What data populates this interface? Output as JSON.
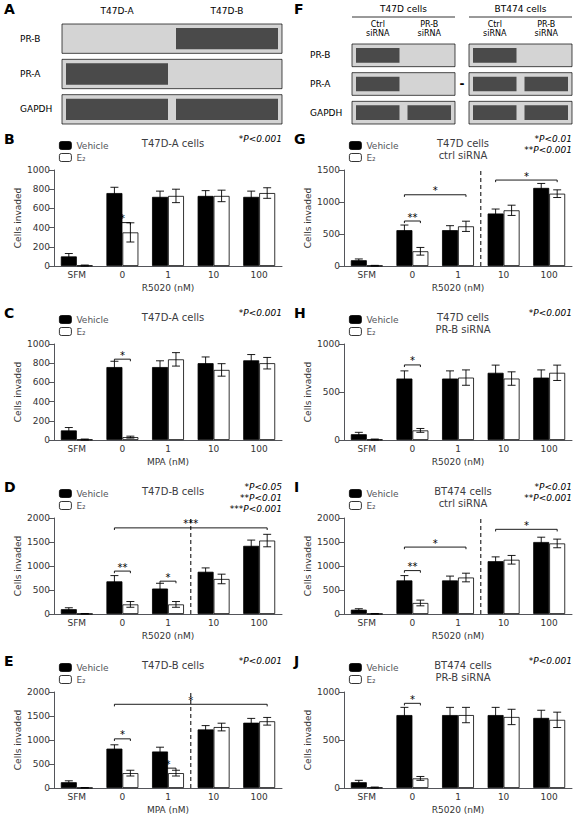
{
  "chart_data": [
    {
      "type": "blot",
      "panel_label": "A",
      "columns": [
        "T47D-A",
        "T47D-B"
      ],
      "rows": [
        "PR-B",
        "PR-A",
        "GAPDH"
      ],
      "bands": [
        [
          false,
          true
        ],
        [
          true,
          false
        ],
        [
          true,
          true
        ]
      ]
    },
    {
      "type": "blot",
      "panel_label": "F",
      "groups": [
        {
          "name": "T47D cells",
          "columns": [
            "Ctrl\nsiRNA",
            "PR-B\nsiRNA"
          ]
        },
        {
          "name": "BT474 cells",
          "columns": [
            "Ctrl\nsiRNA",
            "PR-B\nsiRNA"
          ]
        }
      ],
      "rows": [
        "PR-B",
        "PR-A",
        "GAPDH"
      ],
      "bands": [
        [
          true,
          false,
          true,
          false
        ],
        [
          true,
          false,
          true,
          true
        ],
        [
          true,
          true,
          true,
          true
        ]
      ],
      "annotations": [
        {
          "label": "-",
          "row": "PR-A",
          "group": "T47D cells"
        }
      ]
    },
    {
      "type": "bar",
      "panel_label": "B",
      "title": "T47D-A cells",
      "xlabel": "R5020 (nM)",
      "ylabel": "Cells invaded",
      "categories": [
        "SFM",
        "0",
        "1",
        "10",
        "100"
      ],
      "series": [
        {
          "name": "Vehicle",
          "color": "#000000",
          "edge_color": "#000000",
          "values": [
            100,
            760,
            720,
            730,
            720
          ],
          "errors": [
            30,
            60,
            60,
            55,
            60
          ]
        },
        {
          "name": "E₂",
          "color": "#ffffff",
          "edge_color": "#000000",
          "values": [
            5,
            350,
            730,
            730,
            760
          ],
          "errors": [
            5,
            100,
            70,
            60,
            55
          ]
        }
      ],
      "ylim": [
        0,
        1000
      ],
      "yticks": [
        0,
        200,
        400,
        600,
        800,
        1000
      ],
      "grid": false,
      "legend": "upper left",
      "annotations": [
        {
          "label": "*P<0.001",
          "position": "upper right"
        },
        {
          "label": "*",
          "from": "0",
          "to": "0",
          "y": 430
        }
      ]
    },
    {
      "type": "bar",
      "panel_label": "C",
      "title": "T47D-A cells",
      "xlabel": "MPA (nM)",
      "ylabel": "Cells invaded",
      "categories": [
        "SFM",
        "0",
        "1",
        "10",
        "100"
      ],
      "series": [
        {
          "name": "Vehicle",
          "color": "#000000",
          "edge_color": "#000000",
          "values": [
            100,
            760,
            760,
            800,
            830
          ],
          "errors": [
            30,
            60,
            65,
            65,
            60
          ]
        },
        {
          "name": "E₂",
          "color": "#ffffff",
          "edge_color": "#000000",
          "values": [
            5,
            30,
            840,
            730,
            800
          ],
          "errors": [
            5,
            10,
            70,
            65,
            60
          ]
        }
      ],
      "ylim": [
        0,
        1000
      ],
      "yticks": [
        0,
        200,
        400,
        600,
        800,
        1000
      ],
      "grid": false,
      "legend": "upper left",
      "annotations": [
        {
          "label": "*P<0.001",
          "position": "upper right"
        },
        {
          "label": "*",
          "from": "0",
          "to": "0",
          "y": 820
        }
      ]
    },
    {
      "type": "bar",
      "panel_label": "D",
      "title": "T47D-B cells",
      "xlabel": "R5020 (nM)",
      "ylabel": "Cells invaded",
      "categories": [
        "SFM",
        "0",
        "1",
        "10",
        "100"
      ],
      "series": [
        {
          "name": "Vehicle",
          "color": "#000000",
          "edge_color": "#000000",
          "values": [
            100,
            680,
            530,
            880,
            1420
          ],
          "errors": [
            30,
            120,
            110,
            80,
            120
          ]
        },
        {
          "name": "E₂",
          "color": "#ffffff",
          "edge_color": "#000000",
          "values": [
            5,
            200,
            200,
            730,
            1530
          ],
          "errors": [
            5,
            60,
            60,
            100,
            130
          ]
        }
      ],
      "ylim": [
        0,
        2000
      ],
      "yticks": [
        0,
        500,
        1000,
        1500,
        2000
      ],
      "grid": false,
      "legend": "upper left",
      "annotations": [
        {
          "label": "*P<0.05\n**P<0.01\n***P<0.001",
          "position": "upper right"
        },
        {
          "line_style": "dashed",
          "after": "1"
        },
        {
          "label": "**",
          "from": "0",
          "to": "0",
          "y": 850
        },
        {
          "label": "*",
          "from": "1",
          "to": "1",
          "y": 640
        },
        {
          "label": "***",
          "from": "0",
          "to": "100",
          "y": 1750
        }
      ]
    },
    {
      "type": "bar",
      "panel_label": "E",
      "title": "T47D-B cells",
      "xlabel": "MPA (nM)",
      "ylabel": "Cells invaded",
      "categories": [
        "SFM",
        "0",
        "1",
        "10",
        "100"
      ],
      "series": [
        {
          "name": "Vehicle",
          "color": "#000000",
          "edge_color": "#000000",
          "values": [
            120,
            820,
            760,
            1220,
            1360
          ],
          "errors": [
            30,
            80,
            90,
            80,
            90
          ]
        },
        {
          "name": "E₂",
          "color": "#ffffff",
          "edge_color": "#000000",
          "values": [
            5,
            310,
            310,
            1270,
            1390
          ],
          "errors": [
            5,
            60,
            60,
            80,
            80
          ]
        }
      ],
      "ylim": [
        0,
        2000
      ],
      "yticks": [
        0,
        500,
        1000,
        1500,
        2000
      ],
      "grid": false,
      "legend": "upper left",
      "annotations": [
        {
          "label": "*P<0.001",
          "position": "upper right"
        },
        {
          "line_style": "dashed",
          "after": "1"
        },
        {
          "label": "*",
          "from": "0",
          "to": "0",
          "y": 980
        },
        {
          "label": "*",
          "from": "1",
          "to": "1",
          "y": 370
        },
        {
          "label": "*",
          "from": "0",
          "to": "100",
          "y": 1700
        }
      ]
    },
    {
      "type": "bar",
      "panel_label": "G",
      "title": "T47D cells\nctrl siRNA",
      "xlabel": "R5020 (nM)",
      "ylabel": "Cells invaded",
      "categories": [
        "SFM",
        "0",
        "1",
        "10",
        "100"
      ],
      "series": [
        {
          "name": "Vehicle",
          "color": "#000000",
          "edge_color": "#000000",
          "values": [
            90,
            560,
            560,
            820,
            1220
          ],
          "errors": [
            20,
            80,
            70,
            70,
            70
          ]
        },
        {
          "name": "E₂",
          "color": "#ffffff",
          "edge_color": "#000000",
          "values": [
            5,
            230,
            620,
            870,
            1130
          ],
          "errors": [
            5,
            60,
            80,
            80,
            60
          ]
        }
      ],
      "ylim": [
        0,
        1500
      ],
      "yticks": [
        0,
        500,
        1000,
        1500
      ],
      "grid": false,
      "legend": "upper left",
      "annotations": [
        {
          "label": "*P<0.01\n**P<0.001",
          "position": "upper right"
        },
        {
          "line_style": "dashed",
          "after": "1"
        },
        {
          "label": "**",
          "from": "0",
          "to": "0",
          "y": 670
        },
        {
          "label": "*",
          "from": "0",
          "to": "1",
          "y": 1080
        },
        {
          "label": "*",
          "from": "10",
          "to": "100",
          "y": 1310
        }
      ]
    },
    {
      "type": "bar",
      "panel_label": "H",
      "title": "T47D cells\nPR-B siRNA",
      "xlabel": "R5020 (nM)",
      "ylabel": "Cells invaded",
      "categories": [
        "SFM",
        "0",
        "1",
        "10",
        "100"
      ],
      "series": [
        {
          "name": "Vehicle",
          "color": "#000000",
          "edge_color": "#000000",
          "values": [
            60,
            640,
            640,
            700,
            650
          ],
          "errors": [
            20,
            80,
            80,
            80,
            80
          ]
        },
        {
          "name": "E₂",
          "color": "#ffffff",
          "edge_color": "#000000",
          "values": [
            5,
            100,
            650,
            640,
            700
          ],
          "errors": [
            5,
            20,
            80,
            70,
            80
          ]
        }
      ],
      "ylim": [
        0,
        1000
      ],
      "yticks": [
        0,
        500,
        1000
      ],
      "grid": false,
      "legend": "upper left",
      "annotations": [
        {
          "label": "*P<0.001",
          "position": "upper right"
        },
        {
          "label": "*",
          "from": "0",
          "to": "0",
          "y": 760
        }
      ]
    },
    {
      "type": "bar",
      "panel_label": "I",
      "title": "BT474 cells\nctrl siRNA",
      "xlabel": "R5020 (nM)",
      "ylabel": "Cells invaded",
      "categories": [
        "SFM",
        "0",
        "1",
        "10",
        "100"
      ],
      "series": [
        {
          "name": "Vehicle",
          "color": "#000000",
          "edge_color": "#000000",
          "values": [
            90,
            700,
            700,
            1100,
            1500
          ],
          "errors": [
            20,
            100,
            90,
            90,
            100
          ]
        },
        {
          "name": "E₂",
          "color": "#ffffff",
          "edge_color": "#000000",
          "values": [
            5,
            230,
            760,
            1130,
            1470
          ],
          "errors": [
            5,
            60,
            90,
            90,
            90
          ]
        }
      ],
      "ylim": [
        0,
        2000
      ],
      "yticks": [
        0,
        500,
        1000,
        1500,
        2000
      ],
      "grid": false,
      "legend": "upper left",
      "annotations": [
        {
          "label": "*P<0.01\n**P<0.001",
          "position": "upper right"
        },
        {
          "line_style": "dashed",
          "after": "1"
        },
        {
          "label": "**",
          "from": "0",
          "to": "0",
          "y": 860
        },
        {
          "label": "*",
          "from": "0",
          "to": "1",
          "y": 1350
        },
        {
          "label": "*",
          "from": "10",
          "to": "100",
          "y": 1720
        }
      ]
    },
    {
      "type": "bar",
      "panel_label": "J",
      "title": "BT474 cells\nPR-B siRNA",
      "xlabel": "R5020 (nM)",
      "ylabel": "Cells invaded",
      "categories": [
        "SFM",
        "0",
        "1",
        "10",
        "100"
      ],
      "series": [
        {
          "name": "Vehicle",
          "color": "#000000",
          "edge_color": "#000000",
          "values": [
            60,
            760,
            760,
            760,
            730
          ],
          "errors": [
            20,
            80,
            80,
            80,
            80
          ]
        },
        {
          "name": "E₂",
          "color": "#ffffff",
          "edge_color": "#000000",
          "values": [
            5,
            100,
            760,
            740,
            710
          ],
          "errors": [
            5,
            20,
            80,
            80,
            80
          ]
        }
      ],
      "ylim": [
        0,
        1000
      ],
      "yticks": [
        0,
        500,
        1000
      ],
      "grid": false,
      "legend": "upper left",
      "annotations": [
        {
          "label": "*P<0.001",
          "position": "upper right"
        },
        {
          "label": "*",
          "from": "0",
          "to": "0",
          "y": 860
        }
      ]
    }
  ]
}
